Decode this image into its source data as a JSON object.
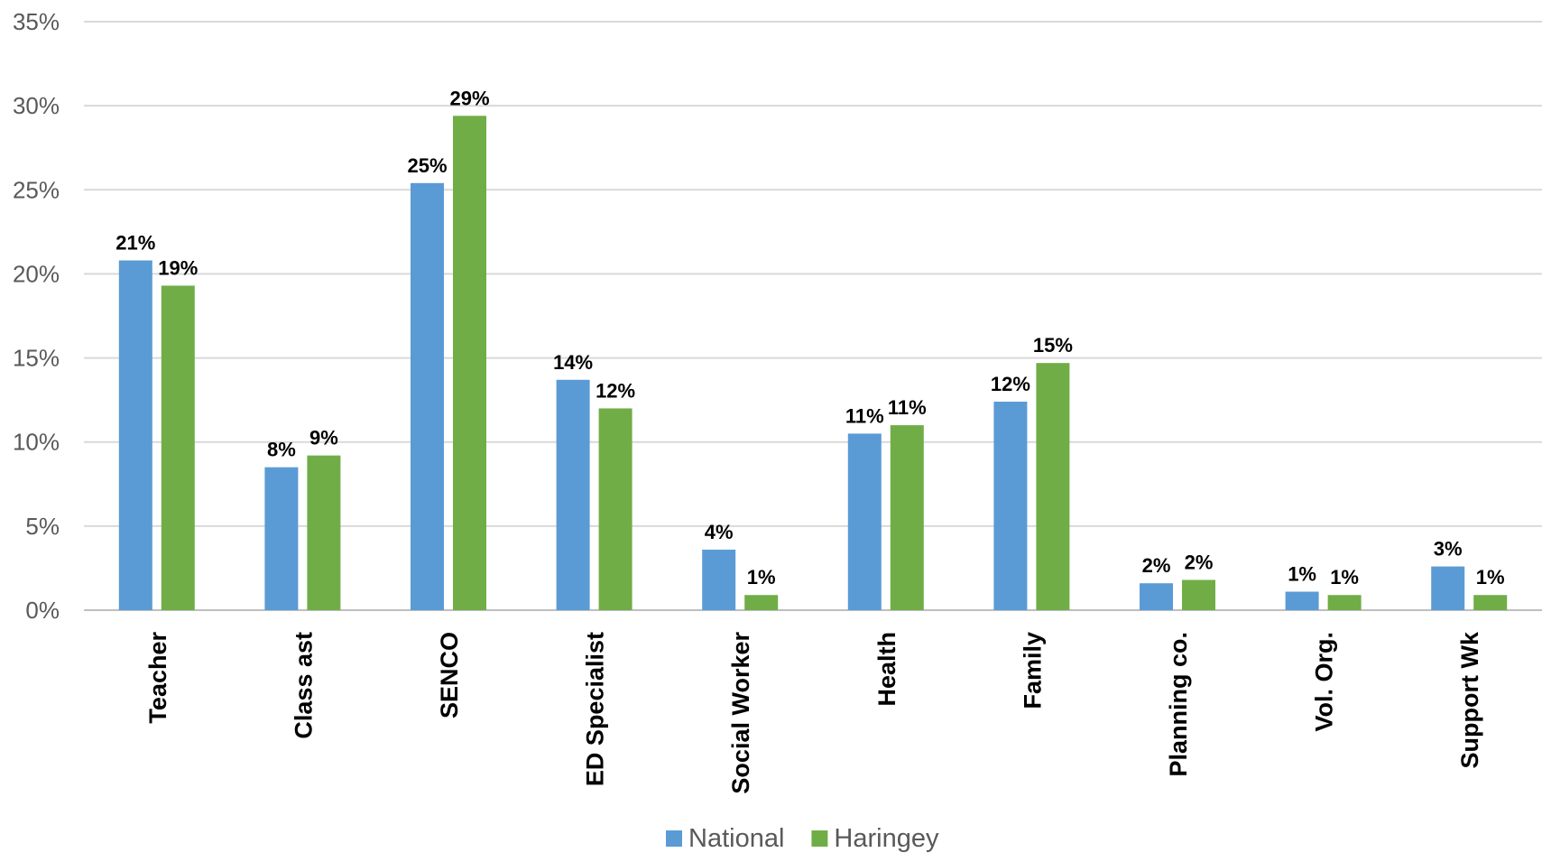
{
  "chart_data": {
    "type": "bar",
    "categories": [
      "Teacher",
      "Class ast",
      "SENCO",
      "ED Specialist",
      "Social Worker",
      "Health",
      "Family",
      "Planning co.",
      "Vol. Org.",
      "Support Wk"
    ],
    "series": [
      {
        "name": "National",
        "color": "#5B9BD5",
        "values": [
          20.8,
          8.5,
          25.4,
          13.7,
          3.6,
          10.5,
          12.4,
          1.6,
          1.1,
          2.6
        ],
        "labels": [
          "21%",
          "8%",
          "25%",
          "14%",
          "4%",
          "11%",
          "12%",
          "2%",
          "1%",
          "3%"
        ]
      },
      {
        "name": "Haringey",
        "color": "#70AD47",
        "values": [
          19.3,
          9.2,
          29.4,
          12.0,
          0.9,
          11.0,
          14.7,
          1.8,
          0.9,
          0.9
        ],
        "labels": [
          "19%",
          "9%",
          "29%",
          "12%",
          "1%",
          "11%",
          "15%",
          "2%",
          "1%",
          "1%"
        ]
      }
    ],
    "yticks": [
      "0%",
      "5%",
      "10%",
      "15%",
      "20%",
      "25%",
      "30%",
      "35%"
    ],
    "ylim": [
      0,
      35
    ],
    "grid": true,
    "legend": "bottom-center",
    "title": "",
    "xlabel": "",
    "ylabel": ""
  }
}
